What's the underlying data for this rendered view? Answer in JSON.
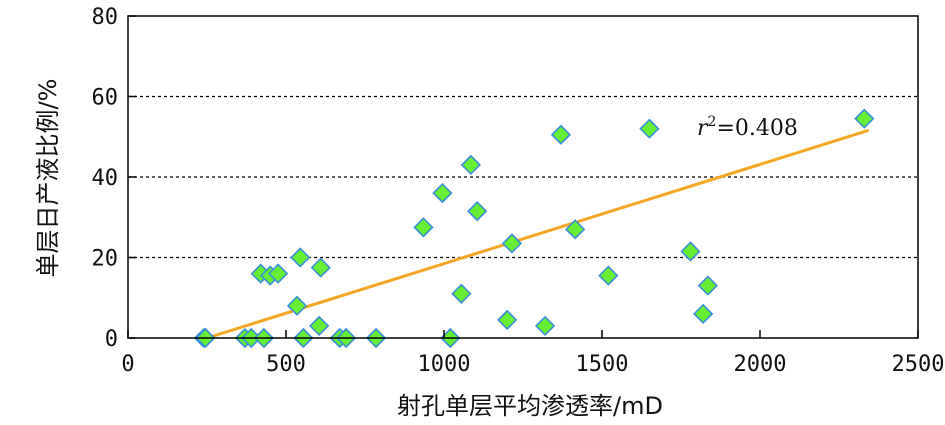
{
  "chart_data": {
    "type": "scatter",
    "xlabel": "射孔单层平均渗透率/mD",
    "ylabel": "单层日产液比例/%",
    "xlim": [
      0,
      2500
    ],
    "ylim": [
      0,
      80
    ],
    "xticks": [
      0,
      500,
      1000,
      1500,
      2000,
      2500
    ],
    "yticks": [
      0,
      20,
      40,
      60,
      80
    ],
    "grid": "horizontal dotted at 20, 40, 60",
    "annotation": {
      "prefix": "r",
      "superscript": "2",
      "value_text": "=0.408"
    },
    "trendline": {
      "x": [
        250,
        2340
      ],
      "y": [
        0,
        51.5
      ],
      "color": "#F5A623"
    },
    "point_fill": "#66EE33",
    "point_stroke": "#3A8FD9",
    "points": [
      {
        "x": 240,
        "y": 0
      },
      {
        "x": 245,
        "y": 0
      },
      {
        "x": 370,
        "y": 0
      },
      {
        "x": 390,
        "y": 0
      },
      {
        "x": 430,
        "y": 0
      },
      {
        "x": 555,
        "y": 0
      },
      {
        "x": 670,
        "y": 0
      },
      {
        "x": 690,
        "y": 0
      },
      {
        "x": 785,
        "y": 0
      },
      {
        "x": 1020,
        "y": 0
      },
      {
        "x": 420,
        "y": 16
      },
      {
        "x": 450,
        "y": 15.5
      },
      {
        "x": 475,
        "y": 16
      },
      {
        "x": 545,
        "y": 20
      },
      {
        "x": 535,
        "y": 8
      },
      {
        "x": 610,
        "y": 17.5
      },
      {
        "x": 605,
        "y": 3
      },
      {
        "x": 935,
        "y": 27.5
      },
      {
        "x": 995,
        "y": 36
      },
      {
        "x": 1055,
        "y": 11
      },
      {
        "x": 1085,
        "y": 43
      },
      {
        "x": 1105,
        "y": 31.5
      },
      {
        "x": 1200,
        "y": 4.5
      },
      {
        "x": 1215,
        "y": 23.5
      },
      {
        "x": 1320,
        "y": 3
      },
      {
        "x": 1370,
        "y": 50.5
      },
      {
        "x": 1415,
        "y": 27
      },
      {
        "x": 1520,
        "y": 15.5
      },
      {
        "x": 1650,
        "y": 52
      },
      {
        "x": 1780,
        "y": 21.5
      },
      {
        "x": 1820,
        "y": 6
      },
      {
        "x": 1835,
        "y": 13
      },
      {
        "x": 2330,
        "y": 54.5
      }
    ]
  }
}
